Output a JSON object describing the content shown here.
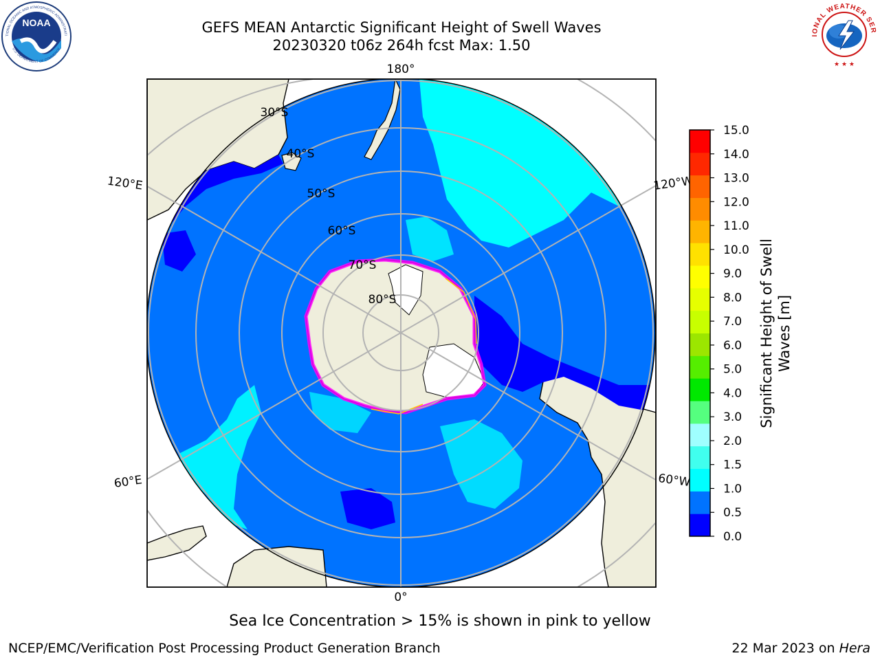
{
  "header": {
    "title_line1": "GEFS MEAN Antarctic Significant Height of Swell Waves",
    "title_line2": "20230320 t06z 264h fcst   Max: 1.50"
  },
  "logos": {
    "left": "NOAA",
    "left_ring": "NATIONAL OCEANIC AND ATMOSPHERIC ADMINISTRATION",
    "left_ring2": "U.S. DEPARTMENT OF COMMERCE",
    "right": "NATIONAL WEATHER SERVICE"
  },
  "map": {
    "lon_labels": [
      "180°",
      "120°E",
      "120°W",
      "60°E",
      "60°W",
      "0°"
    ],
    "lat_labels": [
      "30°S",
      "40°S",
      "50°S",
      "60°S",
      "70°S",
      "80°S"
    ],
    "colors": {
      "ocean_low": "#0000ff",
      "ocean_mid": "#0073ff",
      "ocean_high": "#00ffff",
      "land": "#efeedc",
      "ice": "#ff00ff"
    }
  },
  "colorbar": {
    "label_line1": "Significant Height of Swell",
    "label_line2": "Waves [m]",
    "ticks": [
      "15.0",
      "14.0",
      "13.0",
      "12.0",
      "11.0",
      "10.0",
      "9.0",
      "8.0",
      "7.0",
      "6.0",
      "5.0",
      "4.0",
      "3.0",
      "2.0",
      "1.5",
      "1.0",
      "0.5",
      "0.0"
    ],
    "colors": [
      "#0000ff",
      "#0073ff",
      "#00ffff",
      "#40ffee",
      "#9fffff",
      "#55ff7f",
      "#00e800",
      "#55ee00",
      "#9ce600",
      "#c8ff00",
      "#e6ff00",
      "#ffff00",
      "#ffe100",
      "#ffb400",
      "#ff8c00",
      "#ff6400",
      "#ff2800",
      "#ff0000"
    ]
  },
  "footer": {
    "note": "Sea Ice Concentration > 15% is shown in pink to yellow",
    "left": "NCEP/EMC/Verification Post Processing Product Generation Branch",
    "date": "22 Mar 2023 on ",
    "host": "Hera"
  }
}
